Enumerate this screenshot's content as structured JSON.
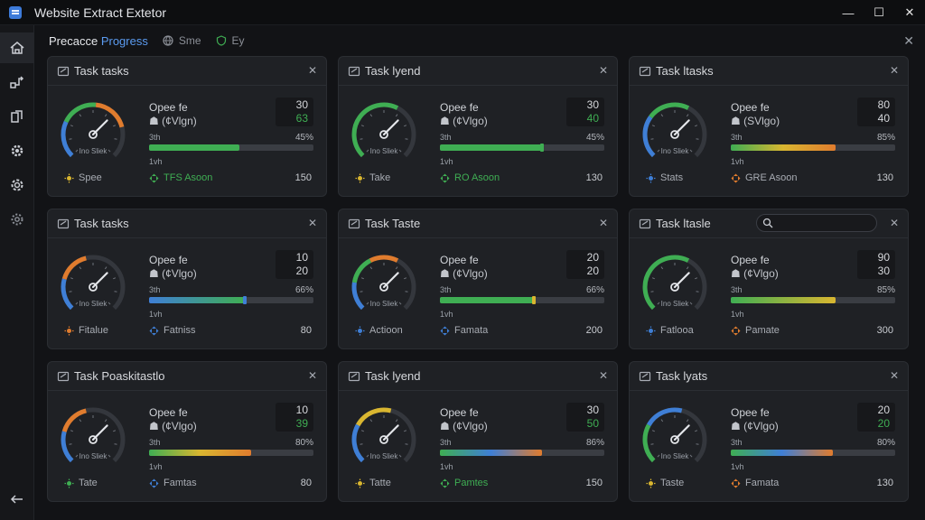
{
  "window": {
    "title": "Website Extract Extetor"
  },
  "colors": {
    "accent": "#5b9bf0",
    "green": "#3fae53",
    "blue": "#3f7fd6",
    "orange": "#e07c2e",
    "yellow": "#d9b630"
  },
  "toolbar": {
    "title_prefix": "Precacce ",
    "title_accent": "Progress",
    "chip1": "Sme",
    "chip2": "Ey"
  },
  "sidebar": {
    "items": [
      {
        "icon": "home-icon"
      },
      {
        "icon": "flow-icon"
      },
      {
        "icon": "copy-icon"
      },
      {
        "icon": "gear-icon"
      },
      {
        "icon": "cog-icon"
      },
      {
        "icon": "settings-icon"
      }
    ],
    "back": "back-arrow-icon"
  },
  "cards": [
    {
      "title": "Task tasks",
      "gauge_caption": "Ino Sliek",
      "gauge_level": 0.78,
      "gauge_colors": [
        "#3f7fd6",
        "#3fae53",
        "#e07c2e"
      ],
      "info_title": "Opee fe",
      "info_sub": "☗ (¢Vlgn)",
      "num_a": "30",
      "num_b": "63",
      "num_b_color": "#3fae53",
      "time": "3th",
      "pct": "45%",
      "progress": 0.55,
      "progress_colors": [
        "#3fae53"
      ],
      "knob_color": "",
      "duration": "1vh",
      "foot_a": "Spee",
      "foot_a_color": "#d9b630",
      "foot_b": "TFS Asoon",
      "foot_b_color": "#3fae53",
      "foot_num": "150"
    },
    {
      "title": "Task lyend",
      "gauge_caption": "Ino Sliek",
      "gauge_level": 0.6,
      "gauge_colors": [
        "#3fae53"
      ],
      "info_title": "Opee fe",
      "info_sub": "☗ (¢Vlgo)",
      "num_a": "30",
      "num_b": "40",
      "num_b_color": "#3fae53",
      "time": "3th",
      "pct": "45%",
      "progress": 0.62,
      "progress_colors": [
        "#3fae53"
      ],
      "knob_color": "#3fae53",
      "duration": "1vh",
      "foot_a": "Take",
      "foot_a_color": "#d9b630",
      "foot_b": "RO Asoon",
      "foot_b_color": "#3fae53",
      "foot_num": "130"
    },
    {
      "title": "Task ltasks",
      "gauge_caption": "Ino Sliek",
      "gauge_level": 0.6,
      "gauge_colors": [
        "#3f7fd6",
        "#3fae53"
      ],
      "info_title": "Opee fe",
      "info_sub": "☗ (SVlgo)",
      "num_a": "80",
      "num_b": "40",
      "num_b_color": "#d6d8dc",
      "time": "3th",
      "pct": "85%",
      "progress": 0.64,
      "progress_colors": [
        "#3fae53",
        "#d9b630",
        "#e07c2e"
      ],
      "knob_color": "",
      "duration": "1vh",
      "foot_a": "Stats",
      "foot_a_color": "#3f7fd6",
      "foot_b": "GRE Asoon",
      "foot_b_color": "#e07c2e",
      "foot_num": "130"
    },
    {
      "title": "Task tasks",
      "gauge_caption": "Ino Sliek",
      "gauge_level": 0.45,
      "gauge_colors": [
        "#3f7fd6",
        "#e07c2e"
      ],
      "info_title": "Opee fe",
      "info_sub": "☗ (¢Vlgo)",
      "num_a": "10",
      "num_b": "20",
      "num_b_color": "#d6d8dc",
      "time": "3th",
      "pct": "66%",
      "progress": 0.58,
      "progress_colors": [
        "#3f7fd6",
        "#3fae53"
      ],
      "knob_color": "#3f7fd6",
      "duration": "1vh",
      "foot_a": "Fitalue",
      "foot_a_color": "#e07c2e",
      "foot_b": "Fatniss",
      "foot_b_color": "#3f7fd6",
      "foot_num": "80"
    },
    {
      "title": "Task Taste",
      "gauge_caption": "Ino Sliek",
      "gauge_level": 0.6,
      "gauge_colors": [
        "#3f7fd6",
        "#3fae53",
        "#e07c2e"
      ],
      "info_title": "Opee fe",
      "info_sub": "☗ (¢Vlgo)",
      "num_a": "20",
      "num_b": "20",
      "num_b_color": "#d6d8dc",
      "time": "3th",
      "pct": "66%",
      "progress": 0.57,
      "progress_colors": [
        "#3fae53"
      ],
      "knob_color": "#d9b630",
      "duration": "1vh",
      "foot_a": "Actioon",
      "foot_a_color": "#3f7fd6",
      "foot_b": "Famata",
      "foot_b_color": "#3f7fd6",
      "foot_num": "200"
    },
    {
      "title": "Task ltasle",
      "search": true,
      "gauge_caption": "Ino Sliek",
      "gauge_level": 0.6,
      "gauge_colors": [
        "#3fae53"
      ],
      "info_title": "Opee fe",
      "info_sub": "☗ (¢Vlgo)",
      "num_a": "90",
      "num_b": "30",
      "num_b_color": "#d6d8dc",
      "time": "3th",
      "pct": "85%",
      "progress": 0.64,
      "progress_colors": [
        "#3fae53",
        "#d9b630"
      ],
      "knob_color": "",
      "duration": "1vh",
      "foot_a": "Fatlooa",
      "foot_a_color": "#3f7fd6",
      "foot_b": "Pamate",
      "foot_b_color": "#e07c2e",
      "foot_num": "300"
    },
    {
      "title": "Task Poaskitastlo",
      "gauge_caption": "Ino Sliek",
      "gauge_level": 0.45,
      "gauge_colors": [
        "#3f7fd6",
        "#e07c2e"
      ],
      "info_title": "Opee fe",
      "info_sub": "☗ (¢Vlgo)",
      "num_a": "10",
      "num_b": "39",
      "num_b_color": "#3fae53",
      "time": "3th",
      "pct": "80%",
      "progress": 0.62,
      "progress_colors": [
        "#3fae53",
        "#d9b630",
        "#e07c2e"
      ],
      "knob_color": "",
      "duration": "1vh",
      "foot_a": "Tate",
      "foot_a_color": "#3fae53",
      "foot_b": "Famtas",
      "foot_b_color": "#3f7fd6",
      "foot_num": "80"
    },
    {
      "title": "Task lyend",
      "gauge_caption": "Ino Sliek",
      "gauge_level": 0.55,
      "gauge_colors": [
        "#3f7fd6",
        "#d9b630"
      ],
      "info_title": "Opee fe",
      "info_sub": "☗ (¢Vlgo)",
      "num_a": "30",
      "num_b": "50",
      "num_b_color": "#3fae53",
      "time": "3th",
      "pct": "86%",
      "progress": 0.62,
      "progress_colors": [
        "#3fae53",
        "#3f7fd6",
        "#e07c2e"
      ],
      "knob_color": "",
      "duration": "1vh",
      "foot_a": "Tatte",
      "foot_a_color": "#d9b630",
      "foot_b": "Pamtes",
      "foot_b_color": "#3fae53",
      "foot_num": "150"
    },
    {
      "title": "Task lyats",
      "gauge_caption": "Ino Sliek",
      "gauge_level": 0.55,
      "gauge_colors": [
        "#3fae53",
        "#3f7fd6"
      ],
      "info_title": "Opee fe",
      "info_sub": "☗ (¢Vlgo)",
      "num_a": "20",
      "num_b": "20",
      "num_b_color": "#3fae53",
      "time": "3th",
      "pct": "80%",
      "progress": 0.62,
      "progress_colors": [
        "#3fae53",
        "#3f7fd6",
        "#e07c2e"
      ],
      "knob_color": "",
      "duration": "1vh",
      "foot_a": "Taste",
      "foot_a_color": "#d9b630",
      "foot_b": "Famata",
      "foot_b_color": "#e07c2e",
      "foot_num": "130"
    }
  ]
}
